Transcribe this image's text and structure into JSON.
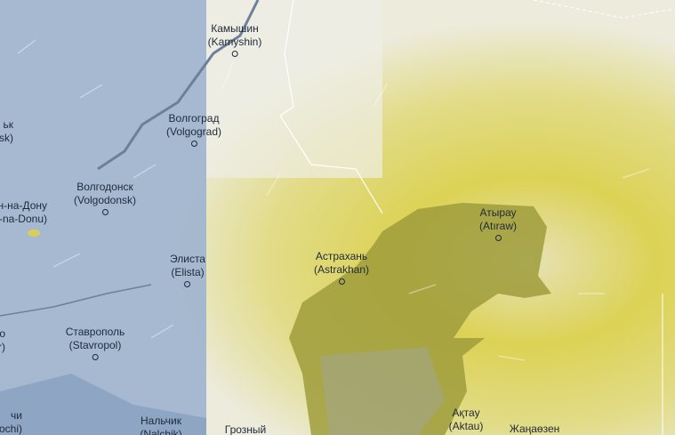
{
  "colors": {
    "left_panel": "#9fb4cf",
    "aerosol_low": "#e8e6d2",
    "aerosol_mid": "#ddd35a",
    "aerosol_high": "#9a9a3a",
    "label": "#1e2a3a"
  },
  "cities": [
    {
      "id": "kamyshin",
      "ru": "Камышин",
      "en": "(Kamyshin)"
    },
    {
      "id": "volgograd",
      "ru": "Волгоград",
      "en": "(Volgograd)"
    },
    {
      "id": "volgodonsk",
      "ru": "Волгодонск",
      "en": "(Volgodonsk)"
    },
    {
      "id": "rostov",
      "ru": "н-на-Дону",
      "en": "-na-Donu)"
    },
    {
      "id": "elista",
      "ru": "Элиста",
      "en": "(Elista)"
    },
    {
      "id": "astrakhan",
      "ru": "Астрахань",
      "en": "(Astrakhan)"
    },
    {
      "id": "atyrau",
      "ru": "Атырау",
      "en": "(Atıraw)"
    },
    {
      "id": "stavropol",
      "ru": "Ставрополь",
      "en": "(Stavropol)"
    },
    {
      "id": "aktau",
      "ru": "Ақтау",
      "en": "(Aktau)"
    },
    {
      "id": "zhanaozen",
      "ru": "Жаңаөзен",
      "en": ""
    },
    {
      "id": "nalchik",
      "ru": "Нальчик",
      "en": "(Nalchik)"
    },
    {
      "id": "grozny",
      "ru": "Грозный",
      "en": ""
    },
    {
      "id": "shakhty",
      "ru": "ьк",
      "en": "sk)"
    },
    {
      "id": "krasnodar",
      "ru": "о",
      "en": "r)"
    },
    {
      "id": "sochi",
      "ru": "чи",
      "en": "ochi)"
    }
  ]
}
